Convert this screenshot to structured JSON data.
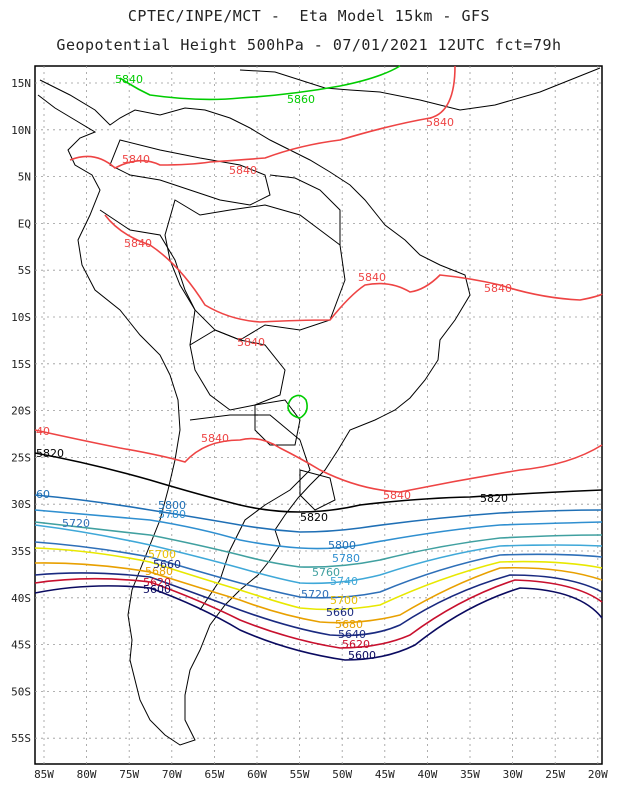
{
  "header": {
    "line1": "CPTEC/INPE/MCT -  Eta Model 15km - GFS",
    "line2": "Geopotential Height 500hPa - 07/01/2021 12UTC fct=79h"
  },
  "axes": {
    "lat_labels": [
      "15N",
      "10N",
      "5N",
      "EQ",
      "5S",
      "10S",
      "15S",
      "20S",
      "25S",
      "30S",
      "35S",
      "40S",
      "45S",
      "50S",
      "55S"
    ],
    "lon_labels": [
      "85W",
      "80W",
      "75W",
      "70W",
      "65W",
      "60W",
      "55W",
      "50W",
      "45W",
      "40W",
      "35W",
      "30W",
      "25W",
      "20W"
    ]
  },
  "contours": {
    "colors": {
      "c5620": "#c8102e",
      "c5640": "#00cc00",
      "c5660": "#00aa00",
      "c5840": "#ee4444",
      "c5820": "#000000",
      "c5800": "#1f6fb5",
      "c5780": "#2f8fd0",
      "c5760": "#40a0a0",
      "c5740": "#3fa8d8",
      "c5720": "#2e6fb8",
      "c5700": "#e8e800",
      "c5680": "#e8a000",
      "c5660b": "#1a2a80",
      "c5600": "#0a0a60"
    },
    "labels": [
      {
        "text": "5840",
        "color": "#00cc00"
      },
      {
        "text": "5860",
        "color": "#00cc00"
      },
      {
        "text": "5840",
        "color": "#ee4444"
      },
      {
        "text": "5840",
        "color": "#ee4444"
      },
      {
        "text": "5840",
        "color": "#ee4444"
      },
      {
        "text": "5840",
        "color": "#ee4444"
      },
      {
        "text": "5840",
        "color": "#ee4444"
      },
      {
        "text": "5840",
        "color": "#ee4444"
      },
      {
        "text": "5840",
        "color": "#ee4444"
      },
      {
        "text": "5840",
        "color": "#ee4444"
      },
      {
        "text": "5840",
        "color": "#ee4444"
      },
      {
        "text": "5840",
        "color": "#ee4444"
      },
      {
        "text": "40",
        "color": "#ee4444"
      },
      {
        "text": "5820",
        "color": "#000000"
      },
      {
        "text": "5820",
        "color": "#000000"
      },
      {
        "text": "5820",
        "color": "#000000"
      },
      {
        "text": "5800",
        "color": "#1f6fb5"
      },
      {
        "text": "5800",
        "color": "#1f6fb5"
      },
      {
        "text": "5780",
        "color": "#2f8fd0"
      },
      {
        "text": "5780",
        "color": "#2f8fd0"
      },
      {
        "text": "5760",
        "color": "#40a0a0"
      },
      {
        "text": "5740",
        "color": "#3fa8d8"
      },
      {
        "text": "5720",
        "color": "#2e6fb8"
      },
      {
        "text": "5720",
        "color": "#2e6fb8"
      },
      {
        "text": "5700",
        "color": "#e8c000"
      },
      {
        "text": "5700",
        "color": "#e8c000"
      },
      {
        "text": "5680",
        "color": "#e8a000"
      },
      {
        "text": "5680",
        "color": "#e8a000"
      },
      {
        "text": "5660",
        "color": "#1a2a80"
      },
      {
        "text": "5660",
        "color": "#1a2a80"
      },
      {
        "text": "5640",
        "color": "#1a2a80"
      },
      {
        "text": "5620",
        "color": "#c8102e"
      },
      {
        "text": "5620",
        "color": "#c8102e"
      },
      {
        "text": "5600",
        "color": "#0a0a60"
      },
      {
        "text": "5600",
        "color": "#0a0a60"
      },
      {
        "text": "60",
        "color": "#1f6fb5"
      },
      {
        "text": "5700",
        "color": "#e8c000"
      },
      {
        "text": "5680",
        "color": "#e8a000"
      }
    ]
  }
}
